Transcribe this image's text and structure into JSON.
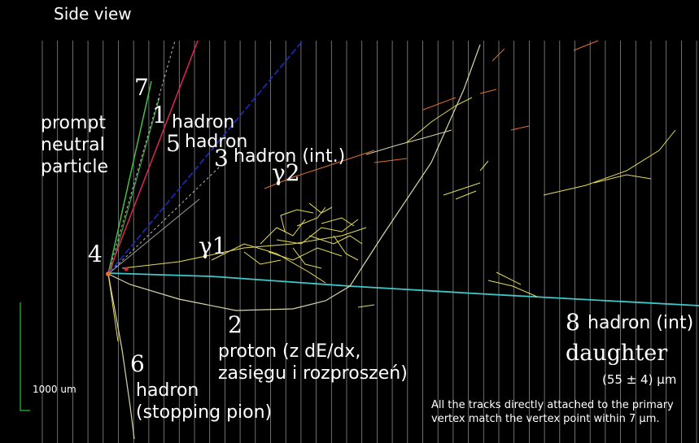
{
  "title": "Side view",
  "vertex_label": "4",
  "prompt_label": [
    "prompt",
    "neutral",
    "particle"
  ],
  "tracks": {
    "t7": {
      "num": "7"
    },
    "t1": {
      "num": "1",
      "text": "hadron"
    },
    "t5": {
      "num": "5",
      "text": "hadron"
    },
    "t3": {
      "num": "3",
      "text": "hadron (int.)"
    },
    "g2": {
      "num": "γ2"
    },
    "g1": {
      "num": "γ1"
    },
    "t2": {
      "num": "2",
      "text_lines": [
        "proton (z dE/dx,",
        "zasięgu i rozproszeń)"
      ]
    },
    "t6": {
      "num": "6",
      "text_lines": [
        "hadron",
        "(stopping pion)"
      ]
    },
    "t8": {
      "num": "8",
      "text": "hadron (int)"
    }
  },
  "daughter": "daughter",
  "daughter_length": "(55 ± 4) μm",
  "scale_label": "1000 um",
  "note_lines": [
    "All the tracks directly attached to the primary",
    "vertex match the vertex point within 7 μm."
  ],
  "colors": {
    "background": "#000000",
    "grid": "#8a8a8a",
    "track_red": "#e0245a",
    "track_green": "#44c144",
    "track_blue": "#1a2fd0",
    "track_cyan": "#3fc9c9",
    "shower_yellow": "#e6dc52",
    "neutral_dashed": "#b9b9b9",
    "scale_bar": "#2bbf2b",
    "fragment_orange": "#e0702a"
  }
}
